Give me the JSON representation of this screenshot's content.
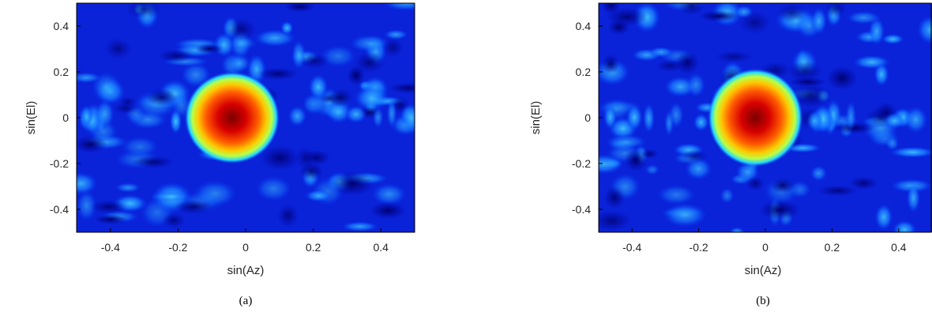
{
  "chart_data": [
    {
      "type": "heatmap",
      "caption": "(a)",
      "xlabel": "sin(Az)",
      "ylabel": "sin(El)",
      "xlim": [
        -0.5,
        0.5
      ],
      "ylim": [
        -0.5,
        0.5
      ],
      "xticks": [
        -0.4,
        -0.2,
        0,
        0.2,
        0.4
      ],
      "yticks": [
        0.4,
        0.2,
        0,
        -0.2,
        -0.4
      ],
      "xtick_labels": [
        "-0.4",
        "-0.2",
        "0",
        "0.2",
        "0.4"
      ],
      "ytick_labels": [
        "0.4",
        "0.2",
        "0",
        "-0.2",
        "-0.4"
      ],
      "colormap": "jet",
      "peak": {
        "x": -0.04,
        "y": 0.0
      },
      "grid": false
    },
    {
      "type": "heatmap",
      "caption": "(b)",
      "xlabel": "sin(Az)",
      "ylabel": "sin(El)",
      "xlim": [
        -0.5,
        0.5
      ],
      "ylim": [
        -0.5,
        0.5
      ],
      "xticks": [
        -0.4,
        -0.2,
        0,
        0.2,
        0.4
      ],
      "yticks": [
        0.4,
        0.2,
        0,
        -0.2,
        -0.4
      ],
      "xtick_labels": [
        "-0.4",
        "-0.2",
        "0",
        "0.2",
        "0.4"
      ],
      "ytick_labels": [
        "0.4",
        "0.2",
        "0",
        "-0.2",
        "-0.4"
      ],
      "colormap": "jet",
      "peak": {
        "x": -0.03,
        "y": 0.0
      },
      "grid": false
    }
  ]
}
